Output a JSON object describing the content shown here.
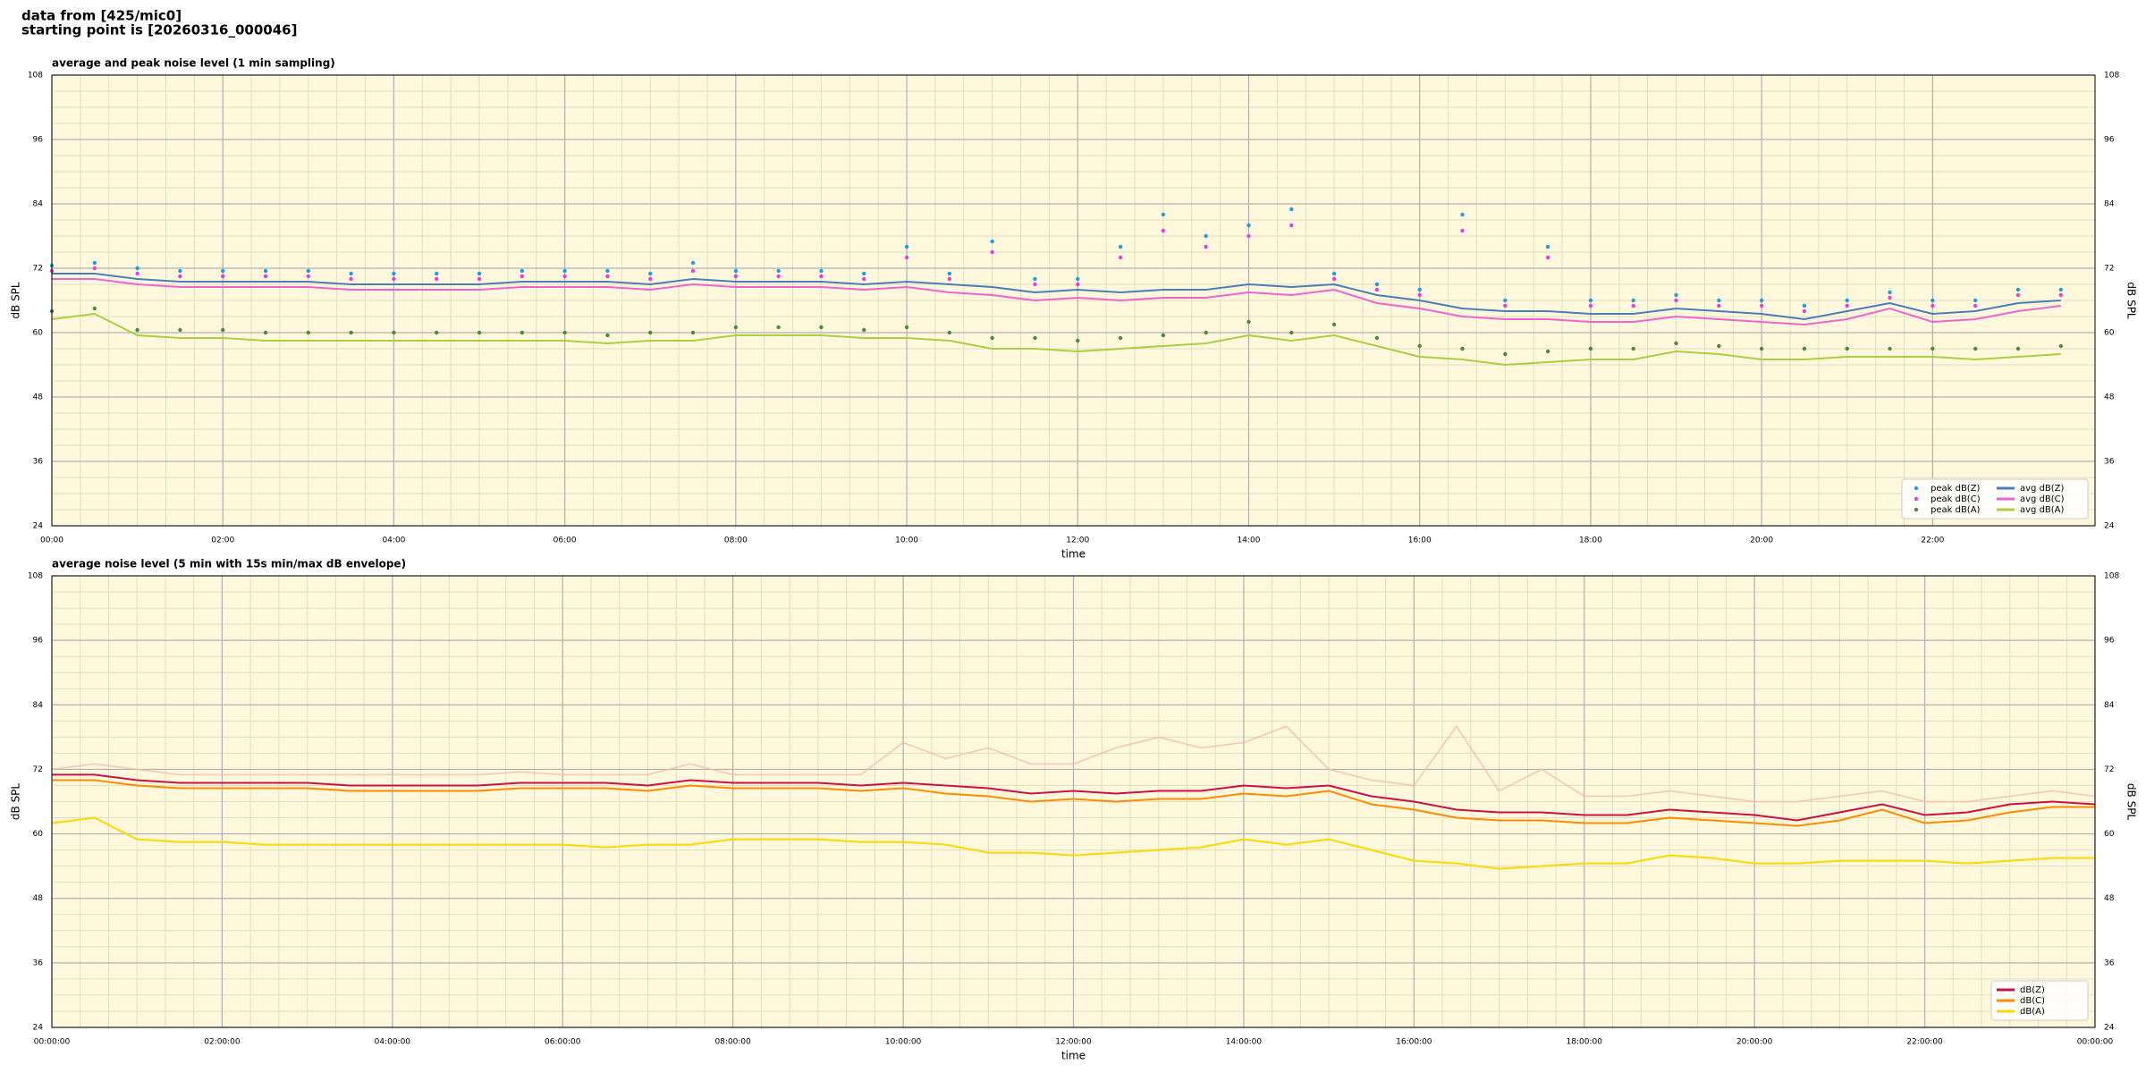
{
  "header": {
    "lines": [
      "data from [425/mic0]",
      "starting point is [20260316_000046]"
    ]
  },
  "chart_data": [
    {
      "type": "combo",
      "title": "average and peak noise level (1 min sampling)",
      "xlabel": "time",
      "ylabel": "dB SPL",
      "x": [
        0,
        0.5,
        1,
        1.5,
        2,
        2.5,
        3,
        3.5,
        4,
        4.5,
        5,
        5.5,
        6,
        6.5,
        7,
        7.5,
        8,
        8.5,
        9,
        9.5,
        10,
        10.5,
        11,
        11.5,
        12,
        12.5,
        13,
        13.5,
        14,
        14.5,
        15,
        15.5,
        16,
        16.5,
        17,
        17.5,
        18,
        18.5,
        19,
        19.5,
        20,
        20.5,
        21,
        21.5,
        22,
        22.5,
        23,
        23.5
      ],
      "series": [
        {
          "name": "peak dB(Z)",
          "kind": "scatter",
          "color": "#1f9be0",
          "values": [
            72.5,
            73,
            72,
            71.5,
            71.5,
            71.5,
            71.5,
            71,
            71,
            71,
            71,
            71.5,
            71.5,
            71.5,
            71,
            73,
            71.5,
            71.5,
            71.5,
            71,
            76,
            71,
            77,
            70,
            70,
            76,
            82,
            78,
            80,
            83,
            71,
            69,
            68,
            82,
            66,
            76,
            66,
            66,
            67,
            66,
            66,
            65,
            66,
            67.5,
            66,
            66,
            68,
            68
          ]
        },
        {
          "name": "peak dB(C)",
          "kind": "scatter",
          "color": "#e040e0",
          "values": [
            71.5,
            72,
            71,
            70.5,
            70.5,
            70.5,
            70.5,
            70,
            70,
            70,
            70,
            70.5,
            70.5,
            70.5,
            70,
            71.5,
            70.5,
            70.5,
            70.5,
            70,
            74,
            70,
            75,
            69,
            69,
            74,
            79,
            76,
            78,
            80,
            70,
            68,
            67,
            79,
            65,
            74,
            65,
            65,
            66,
            65,
            65,
            64,
            65,
            66.5,
            65,
            65,
            67,
            67
          ]
        },
        {
          "name": "peak dB(A)",
          "kind": "scatter",
          "color": "#4a8a3a",
          "values": [
            64,
            64.5,
            60.5,
            60.5,
            60.5,
            60,
            60,
            60,
            60,
            60,
            60,
            60,
            60,
            59.5,
            60,
            60,
            61,
            61,
            61,
            60.5,
            61,
            60,
            59,
            59,
            58.5,
            59,
            59.5,
            60,
            62,
            60,
            61.5,
            59,
            57.5,
            57,
            56,
            56.5,
            57,
            57,
            58,
            57.5,
            57,
            57,
            57,
            57,
            57,
            57,
            57,
            57.5
          ]
        },
        {
          "name": "avg dB(Z)",
          "kind": "line",
          "color": "#4a7fb5",
          "values": [
            71,
            71,
            70,
            69.5,
            69.5,
            69.5,
            69.5,
            69,
            69,
            69,
            69,
            69.5,
            69.5,
            69.5,
            69,
            70,
            69.5,
            69.5,
            69.5,
            69,
            69.5,
            69,
            68.5,
            67.5,
            68,
            67.5,
            68,
            68,
            69,
            68.5,
            69,
            67,
            66,
            64.5,
            64,
            64,
            63.5,
            63.5,
            64.5,
            64,
            63.5,
            62.5,
            64,
            65.5,
            63.5,
            64,
            65.5,
            66
          ]
        },
        {
          "name": "avg dB(C)",
          "kind": "line",
          "color": "#ee66cc",
          "values": [
            70,
            70,
            69,
            68.5,
            68.5,
            68.5,
            68.5,
            68,
            68,
            68,
            68,
            68.5,
            68.5,
            68.5,
            68,
            69,
            68.5,
            68.5,
            68.5,
            68,
            68.5,
            67.5,
            67,
            66,
            66.5,
            66,
            66.5,
            66.5,
            67.5,
            67,
            68,
            65.5,
            64.5,
            63,
            62.5,
            62.5,
            62,
            62,
            63,
            62.5,
            62,
            61.5,
            62.5,
            64.5,
            62,
            62.5,
            64,
            65
          ]
        },
        {
          "name": "avg dB(A)",
          "kind": "line",
          "color": "#a8d040",
          "values": [
            62.5,
            63.5,
            59.5,
            59,
            59,
            58.5,
            58.5,
            58.5,
            58.5,
            58.5,
            58.5,
            58.5,
            58.5,
            58,
            58.5,
            58.5,
            59.5,
            59.5,
            59.5,
            59,
            59,
            58.5,
            57,
            57,
            56.5,
            57,
            57.5,
            58,
            59.5,
            58.5,
            59.5,
            57.5,
            55.5,
            55,
            54,
            54.5,
            55,
            55,
            56.5,
            56,
            55,
            55,
            55.5,
            55.5,
            55.5,
            55,
            55.5,
            56
          ]
        }
      ],
      "xlim": [
        0,
        23.9
      ],
      "ylim": [
        24,
        108
      ],
      "xticks": [
        {
          "value": 0,
          "label": "00:00"
        },
        {
          "value": 2,
          "label": "02:00"
        },
        {
          "value": 4,
          "label": "04:00"
        },
        {
          "value": 6,
          "label": "06:00"
        },
        {
          "value": 8,
          "label": "08:00"
        },
        {
          "value": 10,
          "label": "10:00"
        },
        {
          "value": 12,
          "label": "12:00"
        },
        {
          "value": 14,
          "label": "14:00"
        },
        {
          "value": 16,
          "label": "16:00"
        },
        {
          "value": 18,
          "label": "18:00"
        },
        {
          "value": 20,
          "label": "20:00"
        },
        {
          "value": 22,
          "label": "22:00"
        }
      ],
      "yticks": [
        24,
        36,
        48,
        60,
        72,
        84,
        96,
        108
      ],
      "grid": true,
      "minor_grid": true,
      "background": "#fff8dc",
      "legend": "lower right",
      "legend_columns": 2
    },
    {
      "type": "line",
      "title": "average noise level (5 min with 15s min/max dB envelope)",
      "xlabel": "time",
      "ylabel": "dB SPL",
      "x": [
        0,
        0.5,
        1,
        1.5,
        2,
        2.5,
        3,
        3.5,
        4,
        4.5,
        5,
        5.5,
        6,
        6.5,
        7,
        7.5,
        8,
        8.5,
        9,
        9.5,
        10,
        10.5,
        11,
        11.5,
        12,
        12.5,
        13,
        13.5,
        14,
        14.5,
        15,
        15.5,
        16,
        16.5,
        17,
        17.5,
        18,
        18.5,
        19,
        19.5,
        20,
        20.5,
        21,
        21.5,
        22,
        22.5,
        23,
        23.5,
        24
      ],
      "series": [
        {
          "name": "dB(Z)",
          "color": "#cc1144",
          "envelope_color": "#f4b8a0",
          "values": [
            71,
            71,
            70,
            69.5,
            69.5,
            69.5,
            69.5,
            69,
            69,
            69,
            69,
            69.5,
            69.5,
            69.5,
            69,
            70,
            69.5,
            69.5,
            69.5,
            69,
            69.5,
            69,
            68.5,
            67.5,
            68,
            67.5,
            68,
            68,
            69,
            68.5,
            69,
            67,
            66,
            64.5,
            64,
            64,
            63.5,
            63.5,
            64.5,
            64,
            63.5,
            62.5,
            64,
            65.5,
            63.5,
            64,
            65.5,
            66,
            65.5
          ],
          "max": [
            72,
            73,
            72,
            71,
            71,
            71,
            71,
            71,
            71,
            71,
            71,
            71.5,
            71,
            71,
            71,
            73,
            71,
            71,
            71,
            71,
            77,
            74,
            76,
            73,
            73,
            76,
            78,
            76,
            77,
            80,
            72,
            70,
            69,
            80,
            68,
            72,
            67,
            67,
            68,
            67,
            66,
            66,
            67,
            68,
            66,
            66,
            67,
            68,
            67
          ]
        },
        {
          "name": "dB(C)",
          "color": "#ff8c00",
          "values": [
            70,
            70,
            69,
            68.5,
            68.5,
            68.5,
            68.5,
            68,
            68,
            68,
            68,
            68.5,
            68.5,
            68.5,
            68,
            69,
            68.5,
            68.5,
            68.5,
            68,
            68.5,
            67.5,
            67,
            66,
            66.5,
            66,
            66.5,
            66.5,
            67.5,
            67,
            68,
            65.5,
            64.5,
            63,
            62.5,
            62.5,
            62,
            62,
            63,
            62.5,
            62,
            61.5,
            62.5,
            64.5,
            62,
            62.5,
            64,
            65,
            65
          ]
        },
        {
          "name": "dB(A)",
          "color": "#ffd700",
          "values": [
            62,
            63,
            59,
            58.5,
            58.5,
            58,
            58,
            58,
            58,
            58,
            58,
            58,
            58,
            57.5,
            58,
            58,
            59,
            59,
            59,
            58.5,
            58.5,
            58,
            56.5,
            56.5,
            56,
            56.5,
            57,
            57.5,
            59,
            58,
            59,
            57,
            55,
            54.5,
            53.5,
            54,
            54.5,
            54.5,
            56,
            55.5,
            54.5,
            54.5,
            55,
            55,
            55,
            54.5,
            55,
            55.5,
            55.5
          ]
        }
      ],
      "xlim": [
        0,
        24
      ],
      "ylim": [
        24,
        108
      ],
      "xticks": [
        {
          "value": 0,
          "label": "00:00:00"
        },
        {
          "value": 2,
          "label": "02:00:00"
        },
        {
          "value": 4,
          "label": "04:00:00"
        },
        {
          "value": 6,
          "label": "06:00:00"
        },
        {
          "value": 8,
          "label": "08:00:00"
        },
        {
          "value": 10,
          "label": "10:00:00"
        },
        {
          "value": 12,
          "label": "12:00:00"
        },
        {
          "value": 14,
          "label": "14:00:00"
        },
        {
          "value": 16,
          "label": "16:00:00"
        },
        {
          "value": 18,
          "label": "18:00:00"
        },
        {
          "value": 20,
          "label": "20:00:00"
        },
        {
          "value": 22,
          "label": "22:00:00"
        },
        {
          "value": 24,
          "label": "00:00:00"
        }
      ],
      "yticks": [
        24,
        36,
        48,
        60,
        72,
        84,
        96,
        108
      ],
      "grid": true,
      "minor_grid": true,
      "background": "#fff8dc",
      "legend": "lower right",
      "legend_columns": 1
    }
  ]
}
